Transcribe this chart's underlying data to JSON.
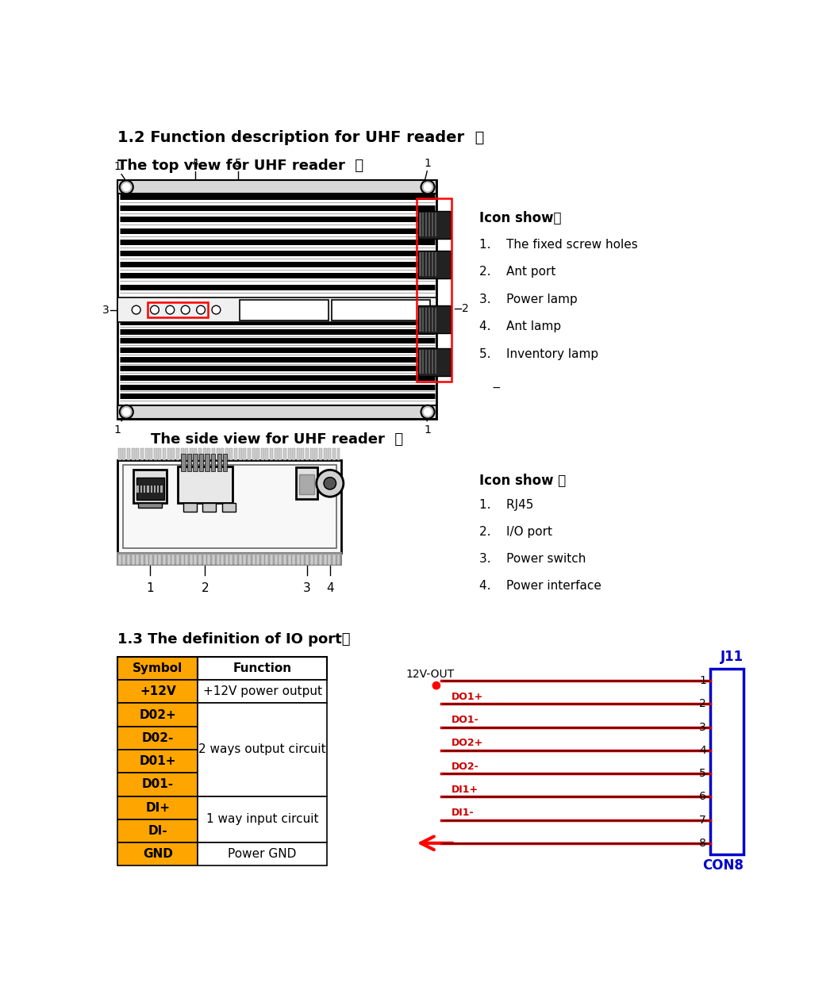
{
  "title_section": "1.2 Function description for UHF reader  ：",
  "top_view_label": "The top view for UHF reader  ：",
  "side_view_label": "The side view for UHF reader  ：",
  "io_section_label": "1.3 The definition of IO port：",
  "icon_show_top": "Icon show：",
  "icon_show_side": "Icon show ：",
  "top_icon_items": [
    "1.    The fixed screw holes",
    "2.    Ant port",
    "3.    Power lamp",
    "4.    Ant lamp",
    "5.    Inventory lamp"
  ],
  "side_icon_items": [
    "1.    RJ45",
    "2.    I/O port",
    "3.    Power switch",
    "4.    Power interface"
  ],
  "table_headers": [
    "Symbol",
    "Function"
  ],
  "symbol_rows": [
    "+12V",
    "D02+",
    "D02-",
    "D01+",
    "D01-",
    "DI+",
    "DI-",
    "GND"
  ],
  "func_merges": [
    [
      0,
      0,
      "+12V power output"
    ],
    [
      1,
      4,
      "2 ways output circuit"
    ],
    [
      5,
      6,
      "1 way input circuit"
    ],
    [
      7,
      7,
      "Power GND"
    ]
  ],
  "connector_pin_labels": [
    "",
    "DO1+",
    "DO1-",
    "DO2+",
    "DO2-",
    "DI1+",
    "DI1-",
    ""
  ],
  "j11_label": "J11",
  "con8_label": "CON8",
  "v12_out_label": "12V-OUT",
  "bg_color": "#ffffff",
  "table_header_bg": "#FFA500",
  "table_symbol_bg": "#FFA500",
  "connector_line_color": "#CC0000",
  "connector_box_color": "#0000CC",
  "label_color_blue": "#0000CC"
}
